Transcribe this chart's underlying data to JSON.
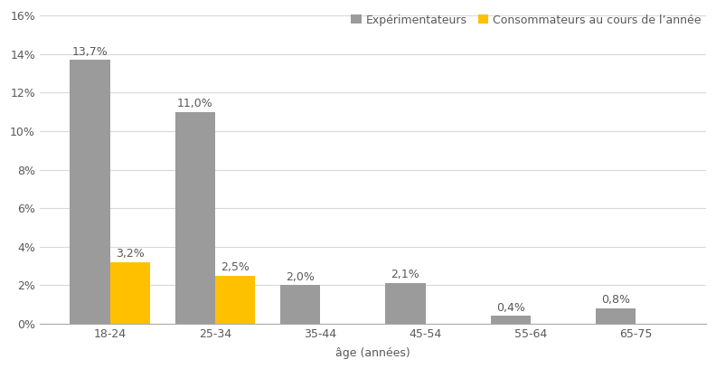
{
  "categories": [
    "18-24",
    "25-34",
    "35-44",
    "45-54",
    "55-64",
    "65-75"
  ],
  "experimentateurs": [
    13.7,
    11.0,
    2.0,
    2.1,
    0.4,
    0.8
  ],
  "consommateurs": [
    3.2,
    2.5,
    0.0,
    0.0,
    0.0,
    0.0
  ],
  "exp_labels": [
    "13,7%",
    "11,0%",
    "2,0%",
    "2,1%",
    "0,4%",
    "0,8%"
  ],
  "conso_labels": [
    "3,2%",
    "2,5%",
    "",
    "",
    "",
    ""
  ],
  "color_exp": "#9B9B9B",
  "color_conso": "#FFC000",
  "legend_exp": "Expérimentateurs",
  "legend_conso": "Consommateurs au cours de l’année",
  "xlabel": "âge (années)",
  "ylim": [
    0,
    16
  ],
  "yticks": [
    0,
    2,
    4,
    6,
    8,
    10,
    12,
    14,
    16
  ],
  "background_color": "#FFFFFF",
  "bar_width": 0.38,
  "label_fontsize": 9,
  "tick_fontsize": 9,
  "legend_fontsize": 9,
  "axis_label_fontsize": 9,
  "text_color": "#595959",
  "grid_color": "#D9D9D9"
}
